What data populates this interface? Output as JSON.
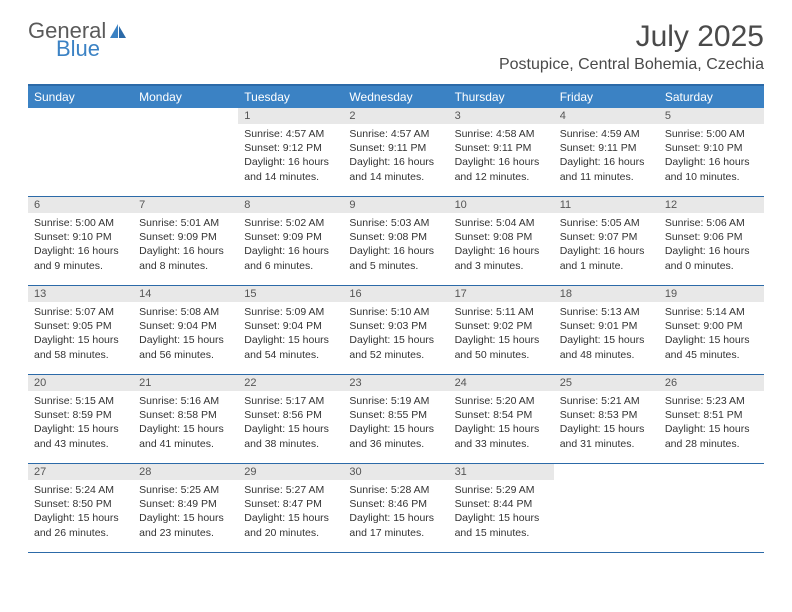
{
  "logo": {
    "text1": "General",
    "text2": "Blue",
    "color1": "#5a5a5a",
    "color2": "#3b82c4"
  },
  "title": "July 2025",
  "location": "Postupice, Central Bohemia, Czechia",
  "colors": {
    "header_bg": "#3b82c4",
    "border": "#2c6aa8",
    "daynum_bg": "#e8e8e8",
    "text": "#333333"
  },
  "day_labels": [
    "Sunday",
    "Monday",
    "Tuesday",
    "Wednesday",
    "Thursday",
    "Friday",
    "Saturday"
  ],
  "weeks": [
    [
      null,
      null,
      {
        "n": "1",
        "sr": "4:57 AM",
        "ss": "9:12 PM",
        "dl": "16 hours and 14 minutes."
      },
      {
        "n": "2",
        "sr": "4:57 AM",
        "ss": "9:11 PM",
        "dl": "16 hours and 14 minutes."
      },
      {
        "n": "3",
        "sr": "4:58 AM",
        "ss": "9:11 PM",
        "dl": "16 hours and 12 minutes."
      },
      {
        "n": "4",
        "sr": "4:59 AM",
        "ss": "9:11 PM",
        "dl": "16 hours and 11 minutes."
      },
      {
        "n": "5",
        "sr": "5:00 AM",
        "ss": "9:10 PM",
        "dl": "16 hours and 10 minutes."
      }
    ],
    [
      {
        "n": "6",
        "sr": "5:00 AM",
        "ss": "9:10 PM",
        "dl": "16 hours and 9 minutes."
      },
      {
        "n": "7",
        "sr": "5:01 AM",
        "ss": "9:09 PM",
        "dl": "16 hours and 8 minutes."
      },
      {
        "n": "8",
        "sr": "5:02 AM",
        "ss": "9:09 PM",
        "dl": "16 hours and 6 minutes."
      },
      {
        "n": "9",
        "sr": "5:03 AM",
        "ss": "9:08 PM",
        "dl": "16 hours and 5 minutes."
      },
      {
        "n": "10",
        "sr": "5:04 AM",
        "ss": "9:08 PM",
        "dl": "16 hours and 3 minutes."
      },
      {
        "n": "11",
        "sr": "5:05 AM",
        "ss": "9:07 PM",
        "dl": "16 hours and 1 minute."
      },
      {
        "n": "12",
        "sr": "5:06 AM",
        "ss": "9:06 PM",
        "dl": "16 hours and 0 minutes."
      }
    ],
    [
      {
        "n": "13",
        "sr": "5:07 AM",
        "ss": "9:05 PM",
        "dl": "15 hours and 58 minutes."
      },
      {
        "n": "14",
        "sr": "5:08 AM",
        "ss": "9:04 PM",
        "dl": "15 hours and 56 minutes."
      },
      {
        "n": "15",
        "sr": "5:09 AM",
        "ss": "9:04 PM",
        "dl": "15 hours and 54 minutes."
      },
      {
        "n": "16",
        "sr": "5:10 AM",
        "ss": "9:03 PM",
        "dl": "15 hours and 52 minutes."
      },
      {
        "n": "17",
        "sr": "5:11 AM",
        "ss": "9:02 PM",
        "dl": "15 hours and 50 minutes."
      },
      {
        "n": "18",
        "sr": "5:13 AM",
        "ss": "9:01 PM",
        "dl": "15 hours and 48 minutes."
      },
      {
        "n": "19",
        "sr": "5:14 AM",
        "ss": "9:00 PM",
        "dl": "15 hours and 45 minutes."
      }
    ],
    [
      {
        "n": "20",
        "sr": "5:15 AM",
        "ss": "8:59 PM",
        "dl": "15 hours and 43 minutes."
      },
      {
        "n": "21",
        "sr": "5:16 AM",
        "ss": "8:58 PM",
        "dl": "15 hours and 41 minutes."
      },
      {
        "n": "22",
        "sr": "5:17 AM",
        "ss": "8:56 PM",
        "dl": "15 hours and 38 minutes."
      },
      {
        "n": "23",
        "sr": "5:19 AM",
        "ss": "8:55 PM",
        "dl": "15 hours and 36 minutes."
      },
      {
        "n": "24",
        "sr": "5:20 AM",
        "ss": "8:54 PM",
        "dl": "15 hours and 33 minutes."
      },
      {
        "n": "25",
        "sr": "5:21 AM",
        "ss": "8:53 PM",
        "dl": "15 hours and 31 minutes."
      },
      {
        "n": "26",
        "sr": "5:23 AM",
        "ss": "8:51 PM",
        "dl": "15 hours and 28 minutes."
      }
    ],
    [
      {
        "n": "27",
        "sr": "5:24 AM",
        "ss": "8:50 PM",
        "dl": "15 hours and 26 minutes."
      },
      {
        "n": "28",
        "sr": "5:25 AM",
        "ss": "8:49 PM",
        "dl": "15 hours and 23 minutes."
      },
      {
        "n": "29",
        "sr": "5:27 AM",
        "ss": "8:47 PM",
        "dl": "15 hours and 20 minutes."
      },
      {
        "n": "30",
        "sr": "5:28 AM",
        "ss": "8:46 PM",
        "dl": "15 hours and 17 minutes."
      },
      {
        "n": "31",
        "sr": "5:29 AM",
        "ss": "8:44 PM",
        "dl": "15 hours and 15 minutes."
      },
      null,
      null
    ]
  ],
  "labels": {
    "sunrise": "Sunrise:",
    "sunset": "Sunset:",
    "daylight": "Daylight:"
  }
}
